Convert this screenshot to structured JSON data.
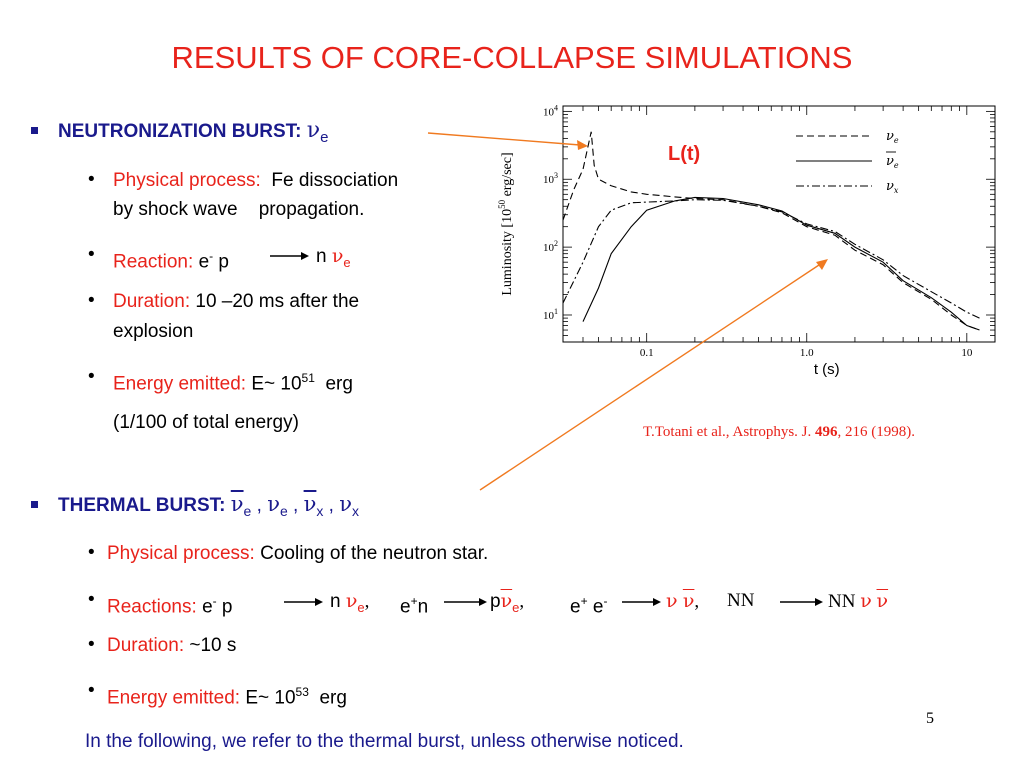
{
  "title": "RESULTS OF CORE-COLLAPSE SIMULATIONS",
  "neutronization": {
    "heading": "NEUTRONIZATION BURST",
    "colon": ":",
    "symbol": "ν",
    "symbol_sub": "e",
    "physical_label": "Physical process:",
    "physical_text_1": "Fe dissociation",
    "physical_text_2": "by shock wave    propagation.",
    "reaction_label": "Reaction:",
    "reaction_lhs": "e",
    "reaction_lhs_sup": "-",
    "reaction_lhs_2": "p",
    "reaction_rhs": "n",
    "reaction_nu": "ν",
    "reaction_nu_sub": "e",
    "duration_label": "Duration:",
    "duration_text_1": "10 –20 ms after the",
    "duration_text_2": "explosion",
    "energy_label": "Energy emitted:",
    "energy_text": "E~ 10",
    "energy_exp": "51",
    "energy_unit": "erg",
    "energy_note": "(1/100 of total energy)"
  },
  "chart_overlay_label": "L(t)",
  "citation": {
    "text": "T.Totani et al., Astrophys. J. ",
    "volume": "496",
    "rest": ", 216 (1998)."
  },
  "thermal": {
    "heading": "THERMAL BURST",
    "colon": ":",
    "nu": "ν",
    "e": "e",
    "x": "x",
    "sep": ",",
    "physical_label": "Physical process:",
    "physical_text": "Cooling of the neutron star.",
    "reactions_label": "Reactions:",
    "r1_lhs": "e",
    "r1_lhs_sup": "-",
    "r1_lhs_2": "p",
    "r1_rhs": "n",
    "r2_lhs": "e",
    "r2_lhs_sup": "+",
    "r2_lhs_2": "n",
    "r2_rhs": "p",
    "r3_lhs": "e",
    "r3_lhs_sup": "+",
    "r3_lhs_2": "e",
    "r3_lhs_2_sup": "-",
    "r4_lhs": "NN",
    "r4_rhs": "NN",
    "duration_label": "Duration:",
    "duration_text": "~10 s",
    "energy_label": "Energy emitted:",
    "energy_text": "E~ 10",
    "energy_exp": "53",
    "energy_unit": "erg"
  },
  "page_number": "5",
  "footer": "In the following, we refer to the thermal burst, unless otherwise noticed.",
  "colors": {
    "title_red": "#e8231b",
    "heading_navy": "#1a1a8c",
    "arrow_orange": "#f07a20"
  },
  "chart_data": {
    "type": "line",
    "xlabel": "t (s)",
    "ylabel": "Luminosity [10^50 erg/sec]",
    "x_scale": "log",
    "y_scale": "log",
    "xlim": [
      0.03,
      15
    ],
    "ylim": [
      4,
      12000
    ],
    "x_ticks": [
      "0.1",
      "1.0",
      "10"
    ],
    "y_ticks": [
      {
        "base": "10",
        "exp": "4"
      },
      {
        "base": "10",
        "exp": "3"
      },
      {
        "base": "10",
        "exp": "2"
      },
      {
        "base": "10",
        "exp": "1"
      }
    ],
    "y_label_parts": {
      "pre": "Luminosity [10",
      "exp": "50",
      "post": " erg/sec]"
    },
    "legend_position": "top-right",
    "series": [
      {
        "name": "ν_e",
        "symbol": "ν",
        "sub": "e",
        "bar": false,
        "style": "dashed",
        "x": [
          0.03,
          0.035,
          0.04,
          0.045,
          0.047,
          0.05,
          0.06,
          0.08,
          0.1,
          0.15,
          0.2,
          0.3,
          0.5,
          0.7,
          1.0,
          1.5,
          2.0,
          3.0,
          4.0,
          6.0,
          8.0,
          10.0,
          12.0
        ],
        "y": [
          250,
          700,
          1400,
          5000,
          1600,
          1000,
          800,
          650,
          600,
          550,
          520,
          500,
          400,
          320,
          200,
          150,
          90,
          55,
          30,
          17,
          10,
          7,
          6
        ]
      },
      {
        "name": "ν̄_e",
        "symbol": "ν",
        "sub": "e",
        "bar": true,
        "style": "solid",
        "x": [
          0.04,
          0.05,
          0.06,
          0.08,
          0.1,
          0.15,
          0.2,
          0.3,
          0.5,
          0.7,
          1.0,
          1.5,
          2.0,
          3.0,
          4.0,
          6.0,
          8.0,
          10.0,
          12.0
        ],
        "y": [
          8,
          25,
          80,
          200,
          350,
          480,
          540,
          520,
          420,
          340,
          210,
          160,
          100,
          60,
          32,
          18,
          11,
          7,
          6
        ]
      },
      {
        "name": "ν_x",
        "symbol": "ν",
        "sub": "x",
        "bar": false,
        "style": "dashdot",
        "x": [
          0.03,
          0.04,
          0.05,
          0.06,
          0.08,
          0.1,
          0.15,
          0.2,
          0.3,
          0.5,
          0.7,
          1.0,
          1.5,
          2.0,
          3.0,
          4.0,
          6.0,
          8.0,
          10.0,
          12.0
        ],
        "y": [
          15,
          60,
          200,
          350,
          450,
          460,
          480,
          500,
          490,
          400,
          330,
          220,
          170,
          110,
          65,
          38,
          22,
          15,
          11,
          9
        ]
      }
    ]
  }
}
